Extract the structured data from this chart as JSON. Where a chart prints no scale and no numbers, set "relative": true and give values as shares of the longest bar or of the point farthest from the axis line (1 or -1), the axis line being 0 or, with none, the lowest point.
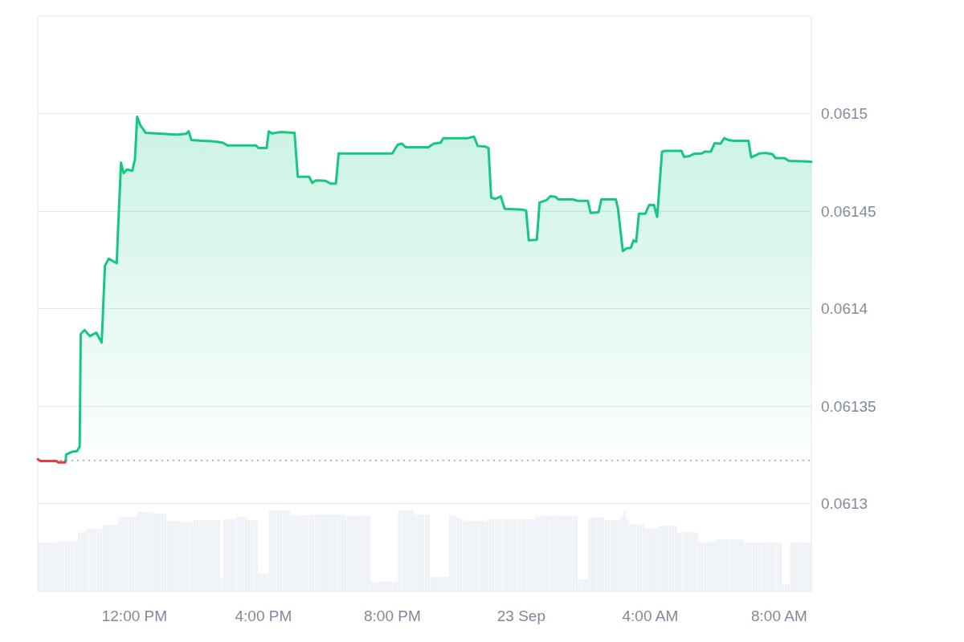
{
  "chart_data": [
    {
      "type": "area",
      "xlim": [
        "--09-22T09:00",
        "--09-23T09:00"
      ],
      "xticks": [
        {
          "value": "--09-22T12:00",
          "label": "12:00 PM"
        },
        {
          "value": "--09-22T16:00",
          "label": "4:00 PM"
        },
        {
          "value": "--09-22T20:00",
          "label": "8:00 PM"
        },
        {
          "value": "--09-23T00:00",
          "label": "23 Sep"
        },
        {
          "value": "--09-23T04:00",
          "label": "4:00 AM"
        },
        {
          "value": "--09-23T08:00",
          "label": "8:00 AM"
        }
      ],
      "ylim": [
        0.061255,
        0.06155
      ],
      "yticks": [
        0.0613,
        0.06135,
        0.0614,
        0.06145,
        0.0615
      ],
      "grid": "y",
      "marker": "none",
      "ref_lines": [
        {
          "axis": "y",
          "value": 0.0613222,
          "color": "#9ea3ab",
          "line_style": "dotted"
        }
      ],
      "series": [
        {
          "color": "#ea3943",
          "x": [
            "--09-22T09:00",
            "--09-22T09:05",
            "--09-22T09:34",
            "--09-22T09:39",
            "--09-22T09:51",
            "--09-22T09:52"
          ],
          "values": [
            0.0613228,
            0.0613219,
            0.0613219,
            0.0613211,
            0.0613211,
            0.0613222
          ]
        },
        {
          "color": "#16c784",
          "x": [
            "--09-22T09:52",
            "--09-22T09:53",
            "--09-22T10:04",
            "--09-22T10:13",
            "--09-22T10:18",
            "--09-22T10:20",
            "--09-22T10:27",
            "--09-22T10:37",
            "--09-22T10:49",
            "--09-22T10:59",
            "--09-22T11:05",
            "--09-22T11:12",
            "--09-22T11:27",
            "--09-22T11:29",
            "--09-22T11:35",
            "--09-22T11:40",
            "--09-22T11:46",
            "--09-22T11:56",
            "--09-22T12:01",
            "--09-22T12:05",
            "--09-22T12:11",
            "--09-22T12:21",
            "--09-22T13:19",
            "--09-22T13:36",
            "--09-22T13:41",
            "--09-22T13:46",
            "--09-22T14:29",
            "--09-22T14:44",
            "--09-22T14:53",
            "--09-22T15:46",
            "--09-22T15:51",
            "--09-22T16:06",
            "--09-22T16:10",
            "--09-22T16:16",
            "--09-22T16:31",
            "--09-22T16:58",
            "--09-22T17:04",
            "--09-22T17:25",
            "--09-22T17:31",
            "--09-22T17:38",
            "--09-22T17:55",
            "--09-22T18:05",
            "--09-22T18:15",
            "--09-22T18:20",
            "--09-22T20:00",
            "--09-22T20:10",
            "--09-22T20:18",
            "--09-22T20:25",
            "--09-22T21:07",
            "--09-22T21:17",
            "--09-22T21:30",
            "--09-22T21:35",
            "--09-22T22:20",
            "--09-22T22:32",
            "--09-22T22:39",
            "--09-22T22:54",
            "--09-22T22:59",
            "--09-22T23:04",
            "--09-22T23:12",
            "--09-22T23:22",
            "--09-22T23:29",
            "--09-23T00:04",
            "--09-23T00:09",
            "--09-23T00:14",
            "--09-23T00:29",
            "--09-23T00:34",
            "--09-23T00:47",
            "--09-23T00:54",
            "--09-23T01:04",
            "--09-23T01:09",
            "--09-23T01:36",
            "--09-23T01:44",
            "--09-23T02:04",
            "--09-23T02:09",
            "--09-23T02:24",
            "--09-23T02:29",
            "--09-23T02:56",
            "--09-23T03:00",
            "--09-23T03:09",
            "--09-23T03:16",
            "--09-23T03:24",
            "--09-23T03:29",
            "--09-23T03:34",
            "--09-23T03:39",
            "--09-23T03:51",
            "--09-23T03:58",
            "--09-23T04:07",
            "--09-23T04:13",
            "--09-23T04:22",
            "--09-23T04:28",
            "--09-23T04:58",
            "--09-23T05:03",
            "--09-23T05:13",
            "--09-23T05:21",
            "--09-23T05:36",
            "--09-23T05:41",
            "--09-23T05:53",
            "--09-23T06:00",
            "--09-23T06:11",
            "--09-23T06:18",
            "--09-23T06:26",
            "--09-23T06:35",
            "--09-23T07:03",
            "--09-23T07:08",
            "--09-23T07:23",
            "--09-23T07:35",
            "--09-23T07:48",
            "--09-23T07:53",
            "--09-23T08:10",
            "--09-23T08:18",
            "--09-23T08:55",
            "--09-23T09:00"
          ],
          "values": [
            0.0613222,
            0.0613252,
            0.0613266,
            0.0613269,
            0.0613293,
            0.061387,
            0.061389,
            0.0613859,
            0.0613877,
            0.0613826,
            0.0614219,
            0.0614256,
            0.0614233,
            0.0614377,
            0.0614748,
            0.0614695,
            0.0614713,
            0.0614707,
            0.0614768,
            0.0614984,
            0.061494,
            0.0614901,
            0.0614892,
            0.0614896,
            0.0614909,
            0.0614864,
            0.0614857,
            0.0614851,
            0.0614837,
            0.0614837,
            0.0614823,
            0.0614823,
            0.0614909,
            0.0614898,
            0.0614905,
            0.0614901,
            0.0614676,
            0.0614676,
            0.0614645,
            0.0614658,
            0.0614656,
            0.0614641,
            0.0614641,
            0.0614795,
            0.0614795,
            0.0614841,
            0.0614846,
            0.0614827,
            0.0614827,
            0.0614846,
            0.0614851,
            0.0614874,
            0.0614874,
            0.0614882,
            0.0614834,
            0.061483,
            0.0614823,
            0.0614569,
            0.0614563,
            0.0614576,
            0.0614512,
            0.0614507,
            0.0614503,
            0.061435,
            0.0614353,
            0.0614544,
            0.0614556,
            0.0614576,
            0.0614573,
            0.061456,
            0.061456,
            0.0614553,
            0.0614553,
            0.0614491,
            0.0614494,
            0.061456,
            0.061456,
            0.0614514,
            0.0614295,
            0.0614309,
            0.0614312,
            0.061435,
            0.0614343,
            0.0614487,
            0.0614487,
            0.0614531,
            0.0614531,
            0.061447,
            0.0614805,
            0.0614809,
            0.0614809,
            0.0614778,
            0.0614782,
            0.0614793,
            0.0614795,
            0.0614805,
            0.0614805,
            0.0614848,
            0.0614846,
            0.0614874,
            0.0614864,
            0.061486,
            0.061486,
            0.0614775,
            0.0614795,
            0.0614798,
            0.0614791,
            0.0614772,
            0.0614772,
            0.0614757,
            0.0614754,
            0.0614752
          ]
        }
      ]
    },
    {
      "type": "bar",
      "relative": true,
      "tick_labels": false,
      "color": "#eef1f5",
      "categories": [
        null,
        null,
        null,
        null,
        null,
        null,
        null,
        null,
        null,
        null,
        null,
        null,
        null,
        null,
        null,
        null,
        null,
        null,
        null,
        null,
        null,
        null,
        null,
        null,
        null,
        null,
        null,
        null,
        null,
        null,
        null,
        null,
        null,
        null,
        null,
        null,
        null,
        null,
        null,
        null,
        null,
        null,
        null,
        null,
        null,
        null,
        null,
        null,
        null,
        null,
        null,
        null,
        null,
        null,
        null,
        null,
        null,
        null,
        null,
        null,
        null,
        null,
        null,
        null,
        null,
        null,
        null,
        null,
        null,
        null,
        null,
        null,
        null,
        null,
        null,
        null,
        null,
        null,
        null,
        null,
        null,
        null,
        null,
        null,
        null,
        null,
        null,
        null,
        null,
        null,
        null,
        null,
        null,
        null,
        null,
        null,
        null,
        null,
        null,
        null,
        null,
        null,
        null,
        null,
        null,
        null,
        null,
        null,
        null,
        null,
        null,
        null,
        null,
        null,
        null,
        null,
        null,
        null,
        null,
        null,
        null,
        null,
        null,
        null,
        null,
        null,
        null,
        null,
        null,
        null,
        null,
        null,
        null,
        null,
        null,
        null,
        null,
        null,
        null,
        null,
        null,
        null,
        null,
        null,
        null,
        null,
        null,
        null,
        null,
        null,
        null,
        null,
        null,
        null,
        null,
        null,
        null,
        null,
        null,
        null,
        null,
        null,
        null,
        null,
        null,
        null,
        null,
        null,
        null,
        null,
        null,
        null,
        null,
        null,
        null,
        null,
        null,
        null,
        null,
        null,
        null,
        null,
        null,
        null,
        null,
        null,
        null,
        null,
        null,
        null,
        null,
        null,
        null,
        null,
        null,
        null,
        null,
        null,
        null,
        null,
        null,
        null,
        null,
        null,
        null,
        null,
        null,
        null,
        null,
        null,
        null,
        null,
        null,
        null,
        null,
        null,
        null,
        null,
        null,
        null,
        null,
        null,
        null,
        null,
        null,
        null,
        null,
        null,
        null,
        null,
        null,
        null,
        null,
        null,
        null,
        null,
        null,
        null,
        null,
        null,
        null,
        null,
        null,
        null,
        null,
        null,
        null,
        null,
        null,
        null,
        null,
        null,
        null,
        null,
        null,
        null,
        null,
        null,
        null,
        null,
        null,
        null,
        null,
        null,
        null,
        null,
        null,
        null,
        null,
        null,
        null,
        null,
        null,
        null,
        null,
        null,
        null,
        null,
        null,
        null,
        null,
        null,
        null,
        null,
        null,
        null,
        null,
        null
      ],
      "values": [
        0.6,
        0.6,
        0.6,
        0.6,
        0.6,
        0.6,
        0.6,
        0.62,
        0.62,
        0.62,
        0.62,
        0.62,
        0.62,
        0.62,
        0.62,
        0.73,
        0.73,
        0.73,
        0.77,
        0.77,
        0.77,
        0.77,
        0.77,
        0.77,
        0.82,
        0.82,
        0.82,
        0.82,
        0.82,
        0.82,
        0.92,
        0.92,
        0.92,
        0.92,
        0.92,
        0.92,
        0.92,
        0.98,
        0.98,
        0.98,
        0.98,
        0.98,
        0.98,
        0.96,
        0.96,
        0.96,
        0.96,
        0.96,
        0.87,
        0.87,
        0.87,
        0.87,
        0.87,
        0.85,
        0.85,
        0.85,
        0.85,
        0.85,
        0.88,
        0.88,
        0.88,
        0.88,
        0.88,
        0.88,
        0.88,
        0.88,
        0.88,
        0.88,
        0.17,
        0.89,
        0.89,
        0.89,
        0.89,
        0.89,
        0.92,
        0.92,
        0.92,
        0.92,
        0.88,
        0.88,
        0.88,
        0.88,
        0.22,
        0.22,
        0.22,
        0.22,
        1,
        1,
        1,
        1,
        1,
        1,
        1,
        1,
        0.94,
        0.94,
        0.94,
        0.94,
        0.94,
        0.94,
        0.94,
        0.94,
        0.95,
        0.95,
        0.95,
        0.95,
        0.95,
        0.95,
        0.95,
        0.95,
        0.95,
        0.95,
        0.95,
        0.95,
        0.93,
        0.93,
        0.93,
        0.93,
        0.93,
        0.93,
        0.93,
        0.93,
        0.93,
        0.93,
        0.12,
        0.12,
        0.12,
        0.12,
        0.12,
        0.12,
        0.12,
        0.12,
        0.12,
        0.12,
        1,
        1,
        1,
        1,
        1,
        1,
        0.95,
        0.95,
        0.95,
        0.95,
        0.95,
        0.95,
        0.18,
        0.18,
        0.18,
        0.18,
        0.18,
        0.18,
        0.18,
        0.94,
        0.94,
        0.93,
        0.91,
        0.89,
        0.89,
        0.87,
        0.87,
        0.87,
        0.87,
        0.87,
        0.87,
        0.87,
        0.87,
        0.89,
        0.89,
        0.89,
        0.89,
        0.89,
        0.89,
        0.89,
        0.89,
        0.89,
        0.89,
        0.89,
        0.89,
        0.89,
        0.89,
        0.89,
        0.89,
        0.89,
        0.89,
        0.93,
        0.93,
        0.93,
        0.93,
        0.93,
        0.93,
        0.93,
        0.93,
        0.93,
        0.93,
        0.93,
        0.93,
        0.93,
        0.93,
        0.93,
        0.93,
        0.15,
        0.15,
        0.15,
        0.15,
        0.91,
        0.91,
        0.91,
        0.91,
        0.91,
        0.91,
        0.88,
        0.88,
        0.88,
        0.88,
        0.88,
        0.88,
        0.93,
        0.99,
        0.9,
        0.83,
        0.83,
        0.83,
        0.83,
        0.83,
        0.83,
        0.78,
        0.78,
        0.78,
        0.78,
        0.78,
        0.81,
        0.81,
        0.81,
        0.81,
        0.81,
        0.81,
        0.81,
        0.73,
        0.73,
        0.73,
        0.73,
        0.73,
        0.73,
        0.73,
        0.73,
        0.61,
        0.61,
        0.61,
        0.61,
        0.61,
        0.61,
        0.64,
        0.64,
        0.64,
        0.64,
        0.64,
        0.64,
        0.64,
        0.64,
        0.64,
        0.64,
        0.64,
        0.6,
        0.6,
        0.6,
        0.6,
        0.6,
        0.6,
        0.6,
        0.6,
        0.6,
        0.6,
        0.6,
        0.6,
        0.6,
        0.6,
        0.09,
        0.09,
        0.09,
        0.6,
        0.6,
        0.6,
        0.6,
        0.6,
        0.6,
        0.6,
        0.6
      ]
    }
  ]
}
